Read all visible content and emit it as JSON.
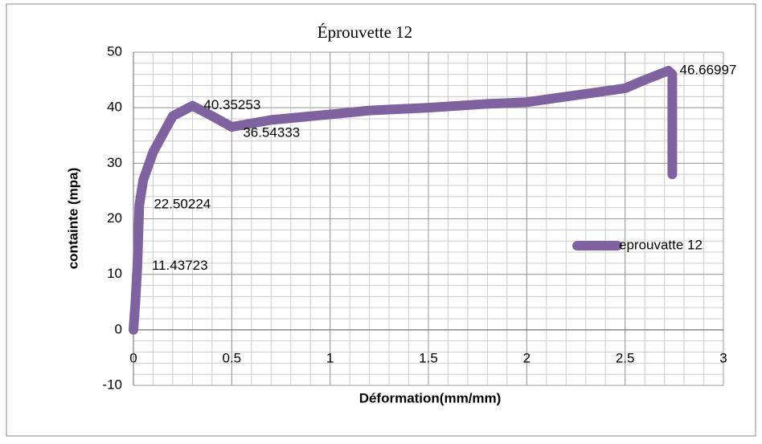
{
  "chart_data": {
    "type": "line",
    "title": "Éprouvette 12",
    "x_label": "Déformation(mm/mm)",
    "y_label": "containte (mpa)",
    "xlim": [
      0,
      3
    ],
    "xticks": [
      0,
      0.5,
      1,
      1.5,
      2,
      2.5,
      3
    ],
    "ylim": [
      -10,
      50
    ],
    "yticks": [
      -10,
      0,
      10,
      20,
      30,
      40,
      50
    ],
    "grid": true,
    "xminor_step": 0.1,
    "yminor_step": 2,
    "legend": "right",
    "x": [
      0,
      0.01,
      0.02,
      0.03,
      0.05,
      0.1,
      0.2,
      0.3,
      0.4,
      0.5,
      0.7,
      1.0,
      1.2,
      1.5,
      1.8,
      2.0,
      2.2,
      2.5,
      2.6,
      2.72,
      2.74,
      2.74
    ],
    "series": [
      {
        "name": "eprouvatte 12",
        "color": "#7f63a1",
        "values": [
          0,
          5,
          11.43723,
          22.50224,
          27,
          32,
          38.5,
          40.35253,
          38.5,
          36.54333,
          37.8,
          38.8,
          39.5,
          40,
          40.7,
          41,
          42,
          43.5,
          45,
          46.66997,
          46,
          28
        ],
        "value_labels": [
          null,
          null,
          "11.43723",
          "22.50224",
          null,
          null,
          null,
          "40.35253",
          null,
          "36.54333",
          null,
          null,
          null,
          null,
          null,
          null,
          null,
          null,
          null,
          "46.66997",
          null,
          null
        ]
      }
    ]
  }
}
